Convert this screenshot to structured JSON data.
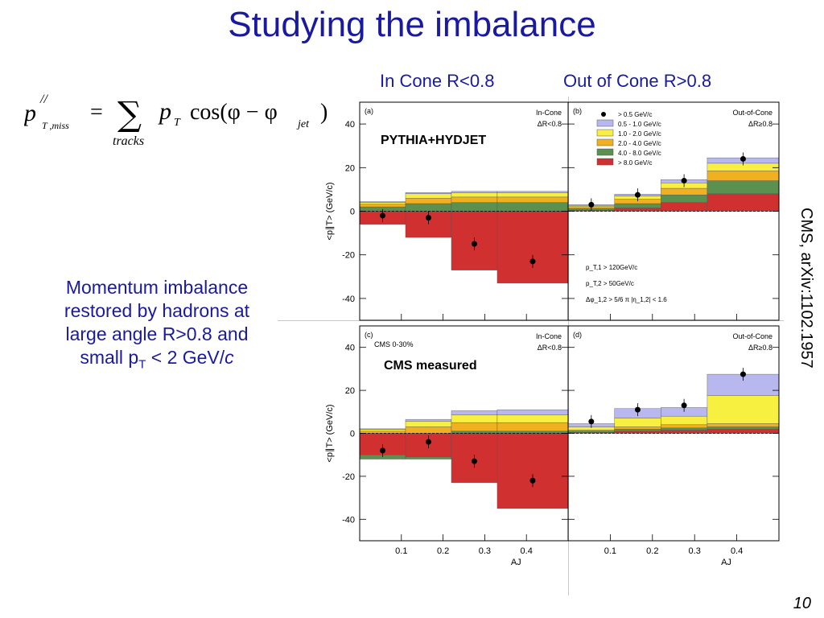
{
  "slide": {
    "title": "Studying the imbalance",
    "col_left_label": "In Cone R<0.8",
    "col_right_label": "Out of Cone R>0.8",
    "note_lines": [
      "Momentum imbalance",
      "restored by hadrons at",
      "large angle R>0.8 and"
    ],
    "note_last": {
      "pre": "small p",
      "sub": "T",
      "mid": " < 2 GeV/",
      "ital": "c"
    },
    "citation": "CMS, arXiv:1102.1957",
    "page_number": "10",
    "formula": {
      "lhs": "p",
      "lhs_sup": "//",
      "lhs_sub": "T ,miss",
      "eq": "=",
      "sum": "∑",
      "sum_sub": "tracks",
      "pt": "p",
      "pt_sub": "T",
      "cos": "cos(φ − φ",
      "jet": "jet",
      "close": ")"
    }
  },
  "colors": {
    "title_blue": "#1a1aa0",
    "bin_0_5_1": "#b8b8ee",
    "bin_1_2": "#f8f040",
    "bin_2_4": "#f0b020",
    "bin_4_8": "#5a9050",
    "bin_gt8": "#d03030"
  },
  "chart_data": [
    {
      "id": "a",
      "type": "bar",
      "panel_label": "(a)",
      "region_label_1": "In-Cone",
      "region_label_2": "ΔR<0.8",
      "overlay_label": "PYTHIA+HYDJET",
      "ylabel": "<p∥T> (GeV/c)",
      "xlabel": "",
      "ylim": [
        -50,
        50
      ],
      "xlim": [
        0,
        0.5
      ],
      "bin_edges": [
        0,
        0.11,
        0.22,
        0.33,
        0.5
      ],
      "point_x": [
        0.055,
        0.165,
        0.275,
        0.415
      ],
      "points": [
        -2,
        -3,
        -15,
        -23
      ],
      "series": [
        {
          "name": "> 8.0 GeV/c",
          "values": [
            -6,
            -12,
            -27,
            -33
          ]
        },
        {
          "name": "4.0 - 8.0 GeV/c",
          "values": [
            2,
            3.5,
            4,
            4
          ]
        },
        {
          "name": "2.0 - 4.0 GeV/c",
          "values": [
            1.2,
            2.5,
            2.5,
            2.5
          ]
        },
        {
          "name": "1.0 - 2.0 GeV/c",
          "values": [
            0.8,
            2,
            2,
            2
          ]
        },
        {
          "name": "0.5 - 1.0 GeV/c",
          "values": [
            0.4,
            0.6,
            0.6,
            0.6
          ]
        }
      ],
      "yticks": [
        "-40",
        "-20",
        "0",
        "20",
        "40"
      ],
      "xticks": []
    },
    {
      "id": "b",
      "type": "bar",
      "panel_label": "(b)",
      "region_label_1": "Out-of-Cone",
      "region_label_2": "ΔR≥0.8",
      "legend": [
        {
          "name": "> 0.5 GeV/c",
          "marker": "point"
        },
        {
          "name": "0.5 - 1.0 GeV/c",
          "color": "#b8b8ee"
        },
        {
          "name": "1.0 - 2.0 GeV/c",
          "color": "#f8f040"
        },
        {
          "name": "2.0 - 4.0 GeV/c",
          "color": "#f0b020"
        },
        {
          "name": "4.0 - 8.0 GeV/c",
          "color": "#5a9050"
        },
        {
          "name": "> 8.0 GeV/c",
          "color": "#d03030"
        }
      ],
      "cuts": [
        "p_T,1 > 120GeV/c",
        "p_T,2 > 50GeV/c",
        "Δφ_1,2 > 5/6 π   |η_1,2| < 1.6"
      ],
      "ylim": [
        -50,
        50
      ],
      "xlim": [
        0,
        0.5
      ],
      "bin_edges": [
        0,
        0.11,
        0.22,
        0.33,
        0.5
      ],
      "point_x": [
        0.055,
        0.165,
        0.275,
        0.415
      ],
      "points": [
        3,
        7.5,
        14,
        24
      ],
      "series": [
        {
          "name": "> 8.0 GeV/c",
          "values": [
            0.5,
            1.5,
            4,
            8
          ]
        },
        {
          "name": "4.0 - 8.0 GeV/c",
          "values": [
            0.8,
            2,
            3.5,
            6
          ]
        },
        {
          "name": "2.0 - 4.0 GeV/c",
          "values": [
            0.8,
            2,
            3,
            4.5
          ]
        },
        {
          "name": "1.0 - 2.0 GeV/c",
          "values": [
            0.6,
            1.5,
            2.5,
            3.5
          ]
        },
        {
          "name": "0.5 - 1.0 GeV/c",
          "values": [
            0.3,
            0.8,
            1.5,
            2.5
          ]
        }
      ],
      "xticks": []
    },
    {
      "id": "c",
      "type": "bar",
      "panel_label": "(c)",
      "region_label_1": "In-Cone",
      "region_label_2": "ΔR<0.8",
      "centrality": "CMS 0-30%",
      "overlay_label": "CMS measured",
      "ylabel": "<p∥T> (GeV/c)",
      "xlabel": "A_J",
      "ylim": [
        -50,
        50
      ],
      "xlim": [
        0,
        0.5
      ],
      "bin_edges": [
        0,
        0.11,
        0.22,
        0.33,
        0.5
      ],
      "point_x": [
        0.055,
        0.165,
        0.275,
        0.415
      ],
      "points": [
        -8,
        -4,
        -13,
        -22
      ],
      "series": [
        {
          "name": "> 8.0 GeV/c",
          "values": [
            -10,
            -11,
            -23,
            -35
          ]
        },
        {
          "name": "4.0 - 8.0 GeV/c",
          "values": [
            -2,
            -1,
            1,
            1
          ]
        },
        {
          "name": "2.0 - 4.0 GeV/c",
          "values": [
            1,
            3,
            4,
            4
          ]
        },
        {
          "name": "1.0 - 2.0 GeV/c",
          "values": [
            0.8,
            2.5,
            3.5,
            3.5
          ]
        },
        {
          "name": "0.5 - 1.0 GeV/c",
          "values": [
            0.3,
            1,
            2,
            2.5
          ]
        }
      ],
      "yticks": [
        "-40",
        "-20",
        "0",
        "20",
        "40"
      ],
      "xticks": [
        "0.1",
        "0.2",
        "0.3",
        "0.4"
      ]
    },
    {
      "id": "d",
      "type": "bar",
      "panel_label": "(d)",
      "region_label_1": "Out-of-Cone",
      "region_label_2": "ΔR≥0.8",
      "xlabel": "A_J",
      "ylim": [
        -50,
        50
      ],
      "xlim": [
        0,
        0.5
      ],
      "bin_edges": [
        0,
        0.11,
        0.22,
        0.33,
        0.5
      ],
      "point_x": [
        0.055,
        0.165,
        0.275,
        0.415
      ],
      "points": [
        5.5,
        11,
        13,
        27.5
      ],
      "series": [
        {
          "name": "> 8.0 GeV/c",
          "values": [
            0.5,
            1,
            1.5,
            2
          ]
        },
        {
          "name": "4.0 - 8.0 GeV/c",
          "values": [
            0.5,
            1,
            1,
            1
          ]
        },
        {
          "name": "2.0 - 4.0 GeV/c",
          "values": [
            0.5,
            1,
            1.5,
            1.5
          ]
        },
        {
          "name": "1.0 - 2.0 GeV/c",
          "values": [
            1.5,
            4,
            4,
            13
          ]
        },
        {
          "name": "0.5 - 1.0 GeV/c",
          "values": [
            1.5,
            4.5,
            4,
            10
          ]
        }
      ],
      "xticks": [
        "0.1",
        "0.2",
        "0.3",
        "0.4"
      ]
    }
  ]
}
